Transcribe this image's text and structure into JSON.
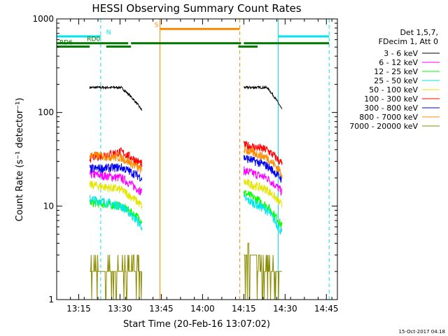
{
  "chart_data": {
    "type": "line",
    "title": "HESSI Observing Summary Count Rates",
    "xlabel": "Start Time (20-Feb-16 13:07:02)",
    "ylabel": "Count Rate (s⁻¹ detector⁻¹)",
    "x_unit": "minutes after 13:07:02",
    "xlim": [
      0,
      102
    ],
    "ylim": [
      1,
      1000
    ],
    "y_scale": "log",
    "grid": false,
    "legend_position": "right",
    "x_ticks": [
      {
        "v": 8,
        "label": "13:15"
      },
      {
        "v": 23,
        "label": "13:30"
      },
      {
        "v": 38,
        "label": "13:45"
      },
      {
        "v": 53,
        "label": "14:00"
      },
      {
        "v": 68,
        "label": "14:15"
      },
      {
        "v": 83,
        "label": "14:30"
      },
      {
        "v": 98,
        "label": "14:45"
      }
    ],
    "y_ticks": [
      {
        "v": 1,
        "label": "1"
      },
      {
        "v": 10,
        "label": "10"
      },
      {
        "v": 100,
        "label": "100"
      },
      {
        "v": 1000,
        "label": "1000"
      }
    ],
    "legend_header": [
      "Det 1,5,7,",
      "FDecim 1, Att 0"
    ],
    "series": [
      {
        "name": "3 - 6 keV",
        "color": "#000000",
        "values": [
          185,
          185,
          105,
          185,
          185,
          105
        ]
      },
      {
        "name": "6 - 12 keV",
        "color": "#ff00ff",
        "values": [
          22,
          20,
          14,
          24,
          20,
          14
        ]
      },
      {
        "name": "12 - 25 keV",
        "color": "#00ff00",
        "values": [
          11,
          10,
          7,
          14,
          10,
          6
        ]
      },
      {
        "name": "25 - 50 keV",
        "color": "#00e5ee",
        "values": [
          12,
          10,
          6,
          12,
          9,
          5
        ]
      },
      {
        "name": "50 - 100 keV",
        "color": "#e5e500",
        "values": [
          17,
          15,
          10,
          18,
          15,
          10
        ]
      },
      {
        "name": "100 - 300 keV",
        "color": "#ff0000",
        "values": [
          33,
          38,
          28,
          45,
          40,
          28
        ]
      },
      {
        "name": "300 - 800 keV",
        "color": "#0000ee",
        "values": [
          25,
          26,
          20,
          33,
          27,
          19
        ]
      },
      {
        "name": "800 - 7000 keV",
        "color": "#ff8c00",
        "values": [
          35,
          33,
          24,
          40,
          33,
          22
        ]
      },
      {
        "name": "7000 - 20000 keV",
        "color": "#8b8b00",
        "values": [
          2,
          2,
          1.5,
          3,
          2,
          1.5
        ]
      }
    ],
    "segments": [
      [
        12,
        31
      ],
      [
        68,
        82
      ]
    ],
    "vertical_lines": [
      {
        "x": -1.5,
        "color": "#00e5ee",
        "style": "solid"
      },
      {
        "x": 16,
        "color": "#00e5ee",
        "style": "dashed"
      },
      {
        "x": 37.5,
        "color": "#ff8c00",
        "style": "solid"
      },
      {
        "x": 66.5,
        "color": "#ff8c00",
        "style": "dashed"
      },
      {
        "x": 80.5,
        "color": "#00e5ee",
        "style": "solid"
      },
      {
        "x": 99,
        "color": "#00e5ee",
        "style": "dashed"
      }
    ],
    "flag_bars": [
      {
        "label": "N",
        "color": "#00e5ee",
        "level": 650,
        "segments": [
          [
            -1.5,
            16
          ],
          [
            80.5,
            99
          ]
        ],
        "label_x": 18
      },
      {
        "label": "S",
        "color": "#ff8c00",
        "level": 780,
        "segments": [
          [
            37.5,
            66.5
          ]
        ],
        "label_x": 35.5
      },
      {
        "label": "RD0",
        "color": "#007700",
        "level": 550,
        "segments": [
          [
            -1.5,
            26
          ],
          [
            27,
            67
          ],
          [
            68,
            99
          ]
        ],
        "label_x": 11
      },
      {
        "label": "RD6",
        "color": "#007700",
        "level": 505,
        "segments": [
          [
            -1.5,
            12
          ],
          [
            18,
            27
          ],
          [
            66,
            73
          ]
        ],
        "label_x": 1
      }
    ]
  },
  "footer": {
    "timestamp": "15-Oct-2017 04:18"
  }
}
